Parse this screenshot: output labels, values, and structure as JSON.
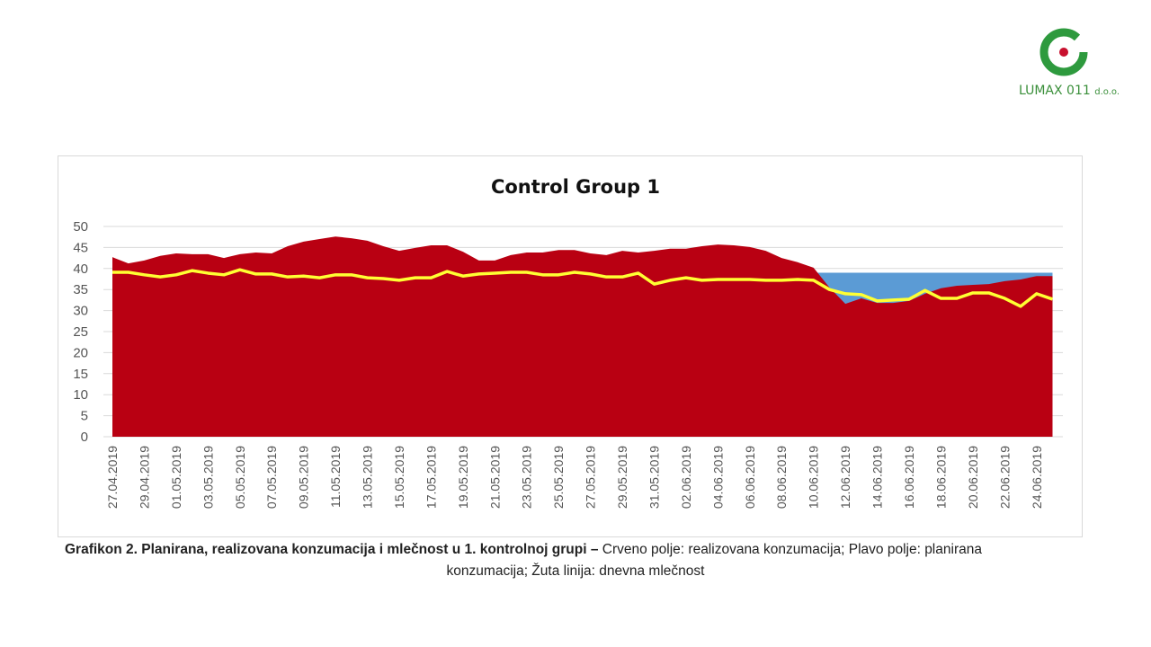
{
  "logo": {
    "text_main": "LUMAX 011",
    "text_suffix": "d.o.o.",
    "colors": {
      "ring": "#2e9a3e",
      "dot": "#c8102e"
    }
  },
  "chart_data": {
    "type": "area",
    "title": "Control Group 1",
    "xlabel": "",
    "ylabel": "",
    "ylim": [
      0,
      50
    ],
    "y_ticks": [
      0,
      5,
      10,
      15,
      20,
      25,
      30,
      35,
      40,
      45,
      50
    ],
    "grid": true,
    "x_tick_labels": [
      "27.04.2019",
      "29.04.2019",
      "01.05.2019",
      "03.05.2019",
      "05.05.2019",
      "07.05.2019",
      "09.05.2019",
      "11.05.2019",
      "13.05.2019",
      "15.05.2019",
      "17.05.2019",
      "19.05.2019",
      "21.05.2019",
      "23.05.2019",
      "25.05.2019",
      "27.05.2019",
      "29.05.2019",
      "31.05.2019",
      "02.06.2019",
      "04.06.2019",
      "06.06.2019",
      "08.06.2019",
      "10.06.2019",
      "12.06.2019",
      "14.06.2019",
      "16.06.2019",
      "18.06.2019",
      "20.06.2019",
      "22.06.2019",
      "24.06.2019"
    ],
    "series": [
      {
        "role": "planned consumption",
        "style": "area",
        "color": "#5b9bd5",
        "values": [
          null,
          null,
          null,
          null,
          null,
          null,
          null,
          null,
          null,
          null,
          null,
          null,
          null,
          null,
          null,
          null,
          null,
          null,
          null,
          null,
          null,
          null,
          null,
          null,
          null,
          null,
          null,
          null,
          null,
          null,
          null,
          null,
          null,
          null,
          null,
          null,
          null,
          null,
          null,
          null,
          null,
          null,
          null,
          null,
          39,
          39,
          39,
          39,
          39,
          39,
          39,
          39,
          39,
          39,
          39,
          39,
          39,
          39,
          39,
          39
        ]
      },
      {
        "role": "realized consumption",
        "style": "area",
        "color": "#b90012",
        "values": [
          42.7,
          41.2,
          41.9,
          43,
          43.6,
          43.4,
          43.4,
          42.5,
          43.4,
          43.8,
          43.6,
          45.3,
          46.4,
          47,
          47.6,
          47.2,
          46.6,
          45.3,
          44.2,
          44.9,
          45.5,
          45.5,
          44,
          41.9,
          41.9,
          43.2,
          43.8,
          43.8,
          44.4,
          44.4,
          43.6,
          43.2,
          44.2,
          43.8,
          44.2,
          44.7,
          44.7,
          45.3,
          45.7,
          45.5,
          45.1,
          44.2,
          42.5,
          41.5,
          40.2,
          35.5,
          31.6,
          32.9,
          31.8,
          31.8,
          32.3,
          34,
          35.3,
          35.9,
          36.1,
          36.3,
          37,
          37.4,
          38.2,
          38.2
        ]
      },
      {
        "role": "daily milk yield",
        "style": "line",
        "color": "#ffff33",
        "values": [
          39.1,
          39.1,
          38.5,
          38,
          38.5,
          39.5,
          38.9,
          38.5,
          39.7,
          38.7,
          38.7,
          38,
          38.2,
          37.8,
          38.5,
          38.5,
          37.8,
          37.6,
          37.2,
          37.8,
          37.8,
          39.3,
          38.2,
          38.7,
          38.9,
          39.1,
          39.1,
          38.5,
          38.5,
          39.1,
          38.7,
          38,
          38,
          38.9,
          36.3,
          37.2,
          37.8,
          37.2,
          37.4,
          37.4,
          37.4,
          37.2,
          37.2,
          37.4,
          37.2,
          35,
          34,
          33.8,
          32.3,
          32.5,
          32.7,
          34.8,
          32.9,
          32.9,
          34.2,
          34.2,
          32.9,
          31,
          34,
          32.7
        ]
      }
    ]
  },
  "caption": {
    "bold": "Grafikon 2. Planirana, realizovana konzumacija i mlečnost u 1. kontrolnoj grupi –",
    "line1_rest": " Crveno polje: realizovana konzumacija; Plavo polje: planirana",
    "line2": "konzumacija; Žuta linija: dnevna mlečnost"
  }
}
